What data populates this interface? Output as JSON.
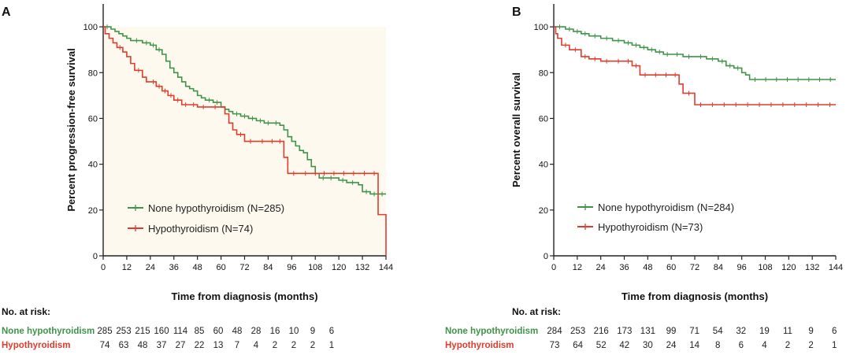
{
  "colors": {
    "green": "#3f9447",
    "red": "#e03c2e",
    "fill": "#fdf9ef"
  },
  "chart_data": [
    {
      "type": "line",
      "panel_label": "A",
      "xlabel": "Time from diagnosis (months)",
      "ylabel": "Percent progression-free survival",
      "xlim": [
        0,
        144
      ],
      "ylim": [
        0,
        110
      ],
      "xticks": [
        0,
        12,
        24,
        36,
        48,
        60,
        72,
        84,
        96,
        108,
        120,
        132,
        144
      ],
      "yticks": [
        0,
        20,
        40,
        60,
        80,
        100
      ],
      "legend": [
        "None hypothyroidism (N=285)",
        "Hypothyroidism (N=74)"
      ],
      "series": [
        {
          "name": "None hypothyroidism (N=285)",
          "color": "green",
          "x": [
            0,
            4,
            6,
            8,
            10,
            12,
            14,
            20,
            24,
            27,
            30,
            32,
            34,
            36,
            38,
            40,
            42,
            44,
            46,
            48,
            50,
            52,
            56,
            60,
            62,
            64,
            66,
            70,
            74,
            78,
            82,
            86,
            90,
            92,
            94,
            96,
            98,
            100,
            102,
            104,
            106,
            108,
            110,
            118,
            120,
            124,
            130,
            132,
            136,
            144
          ],
          "y": [
            100,
            99,
            98,
            97,
            96,
            95,
            94,
            93,
            92,
            90,
            88,
            85,
            82,
            80,
            78,
            76,
            74,
            73,
            72,
            70,
            69,
            68,
            67,
            65,
            64,
            63,
            62,
            61,
            60,
            59,
            58,
            58,
            57,
            55,
            52,
            50,
            48,
            46,
            45,
            42,
            39,
            36,
            34,
            34,
            33,
            32,
            31,
            28,
            27,
            27
          ]
        },
        {
          "name": "Hypothyroidism (N=74)",
          "color": "red",
          "x": [
            0,
            1,
            3,
            5,
            7,
            10,
            12,
            14,
            16,
            20,
            22,
            24,
            27,
            30,
            33,
            36,
            40,
            48,
            54,
            60,
            62,
            64,
            66,
            68,
            72,
            84,
            92,
            94,
            100,
            106,
            110,
            120,
            130,
            136,
            140,
            142,
            144
          ],
          "y": [
            100,
            97,
            95,
            93,
            91,
            89,
            87,
            84,
            81,
            78,
            76,
            76,
            74,
            72,
            70,
            68,
            66,
            65,
            65,
            65,
            62,
            58,
            55,
            53,
            50,
            50,
            43,
            36,
            36,
            36,
            36,
            36,
            36,
            36,
            18,
            18,
            0
          ]
        }
      ],
      "risk_table": {
        "heading": "No. at risk:",
        "rows": [
          {
            "label": "None hypothyroidism",
            "color": "green",
            "values": [
              "285",
              "253",
              "215",
              "160",
              "114",
              "85",
              "60",
              "48",
              "28",
              "16",
              "10",
              "9",
              "6"
            ]
          },
          {
            "label": "Hypothyroidism",
            "color": "red",
            "values": [
              "74",
              "63",
              "48",
              "37",
              "27",
              "22",
              "13",
              "7",
              "4",
              "2",
              "2",
              "2",
              "1"
            ]
          }
        ]
      }
    },
    {
      "type": "line",
      "panel_label": "B",
      "xlabel": "Time from diagnosis (months)",
      "ylabel": "Percent overall survival",
      "xlim": [
        0,
        144
      ],
      "ylim": [
        0,
        110
      ],
      "xticks": [
        0,
        12,
        24,
        36,
        48,
        60,
        72,
        84,
        96,
        108,
        120,
        132,
        144
      ],
      "yticks": [
        0,
        20,
        40,
        60,
        80,
        100
      ],
      "legend": [
        "None hypothyroidism (N=284)",
        "Hypothyroidism (N=73)"
      ],
      "series": [
        {
          "name": "None hypothyroidism (N=284)",
          "color": "green",
          "x": [
            0,
            6,
            10,
            14,
            18,
            24,
            30,
            36,
            40,
            44,
            48,
            52,
            56,
            60,
            66,
            72,
            78,
            84,
            88,
            92,
            96,
            98,
            100,
            144
          ],
          "y": [
            100,
            99,
            98,
            97,
            96,
            95,
            94,
            93,
            92,
            91,
            90,
            89,
            88,
            88,
            87,
            87,
            86,
            85,
            83,
            82,
            80,
            79,
            77,
            77
          ]
        },
        {
          "name": "Hypothyroidism (N=73)",
          "color": "red",
          "x": [
            0,
            1,
            2,
            4,
            8,
            14,
            18,
            24,
            36,
            40,
            44,
            60,
            64,
            66,
            72,
            144
          ],
          "y": [
            100,
            97,
            95,
            92,
            90,
            87,
            86,
            85,
            85,
            83,
            79,
            79,
            75,
            71,
            66,
            66
          ]
        }
      ],
      "risk_table": {
        "heading": "No. at risk:",
        "rows": [
          {
            "label": "None hypothyroidism",
            "color": "green",
            "values": [
              "284",
              "253",
              "216",
              "173",
              "131",
              "99",
              "71",
              "54",
              "32",
              "19",
              "11",
              "9",
              "6"
            ]
          },
          {
            "label": "Hypothyroidism",
            "color": "red",
            "values": [
              "73",
              "64",
              "52",
              "42",
              "30",
              "24",
              "14",
              "8",
              "6",
              "4",
              "2",
              "2",
              "1"
            ]
          }
        ]
      }
    }
  ]
}
